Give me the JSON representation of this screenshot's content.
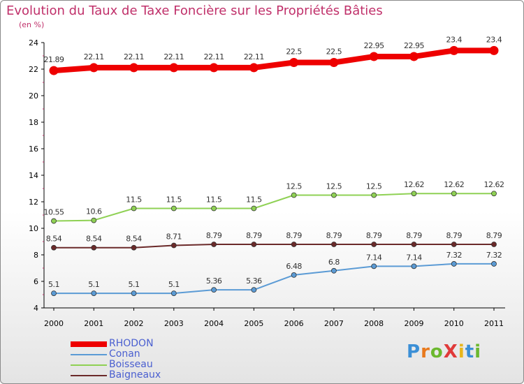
{
  "title": "Evolution du Taux de Taxe Foncière sur les Propriétés Bâties",
  "unit_label": "(en %)",
  "logo": {
    "text": "ProXiti",
    "letter_colors": [
      "#3b8fd6",
      "#e8791c",
      "#6bb82e",
      "#e03a3a",
      "#e8b61c",
      "#3b8fd6",
      "#6bb82e"
    ]
  },
  "chart_data": {
    "type": "line",
    "title": "Evolution du Taux de Taxe Foncière sur les Propriétés Bâties",
    "ylabel": "(en %)",
    "xlabel": "",
    "ylim": [
      4,
      24
    ],
    "yticks": [
      4,
      6,
      8,
      10,
      12,
      14,
      16,
      18,
      20,
      22,
      24
    ],
    "grid": false,
    "legend_position": "bottom-left",
    "categories": [
      "2000",
      "2001",
      "2002",
      "2003",
      "2004",
      "2005",
      "2006",
      "2007",
      "2008",
      "2009",
      "2010",
      "2011"
    ],
    "series": [
      {
        "name": "RHODON",
        "color": "#ee0000",
        "highlight": true,
        "values": [
          21.89,
          22.11,
          22.11,
          22.11,
          22.11,
          22.11,
          22.5,
          22.5,
          22.95,
          22.95,
          23.4,
          23.4
        ]
      },
      {
        "name": "Conan",
        "color": "#5b9bd5",
        "highlight": false,
        "values": [
          5.1,
          5.1,
          5.1,
          5.1,
          5.36,
          5.36,
          6.48,
          6.8,
          7.14,
          7.14,
          7.32,
          7.32
        ]
      },
      {
        "name": "Boisseau",
        "color": "#8fd154",
        "highlight": false,
        "values": [
          10.55,
          10.6,
          11.5,
          11.5,
          11.5,
          11.5,
          12.5,
          12.5,
          12.5,
          12.62,
          12.62,
          12.62
        ]
      },
      {
        "name": "Baigneaux",
        "color": "#6b2a2a",
        "highlight": false,
        "values": [
          8.54,
          8.54,
          8.54,
          8.71,
          8.79,
          8.79,
          8.79,
          8.79,
          8.79,
          8.79,
          8.79,
          8.79
        ]
      }
    ]
  }
}
